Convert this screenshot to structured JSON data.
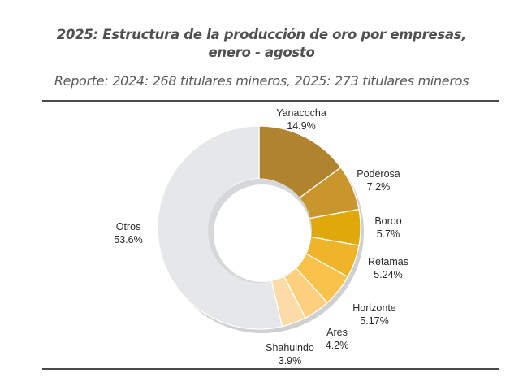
{
  "chart_data": {
    "type": "pie",
    "variant": "donut",
    "title": "2025: Estructura de la producción de oro por empresas, enero - agosto",
    "title_lines": [
      "2025: Estructura de la producción de oro por empresas,",
      "enero - agosto"
    ],
    "subtitle": "Reporte: 2024: 268 titulares mineros, 2025: 273 titulares mineros",
    "start_angle_deg": 0,
    "direction": "clockwise",
    "slices": [
      {
        "label": "Yanacocha",
        "value": 14.9,
        "value_label": "14.9%",
        "color": "#B0832E"
      },
      {
        "label": "Poderosa",
        "value": 7.2,
        "value_label": "7.2%",
        "color": "#C8962D"
      },
      {
        "label": "Boroo",
        "value": 5.7,
        "value_label": "5.7%",
        "color": "#DFA80B"
      },
      {
        "label": "Retamas",
        "value": 5.24,
        "value_label": "5.24%",
        "color": "#EEB42A"
      },
      {
        "label": "Horizonte",
        "value": 5.17,
        "value_label": "5.17%",
        "color": "#F9C24A"
      },
      {
        "label": "Ares",
        "value": 4.2,
        "value_label": "4.2%",
        "color": "#FDCF7E"
      },
      {
        "label": "Shahuindo",
        "value": 3.9,
        "value_label": "3.9%",
        "color": "#FCDBA6"
      },
      {
        "label": "Otros",
        "value": 53.6,
        "value_label": "53.6%",
        "color": "#E6E7E8"
      }
    ],
    "legend": "none",
    "labels": "outside"
  }
}
